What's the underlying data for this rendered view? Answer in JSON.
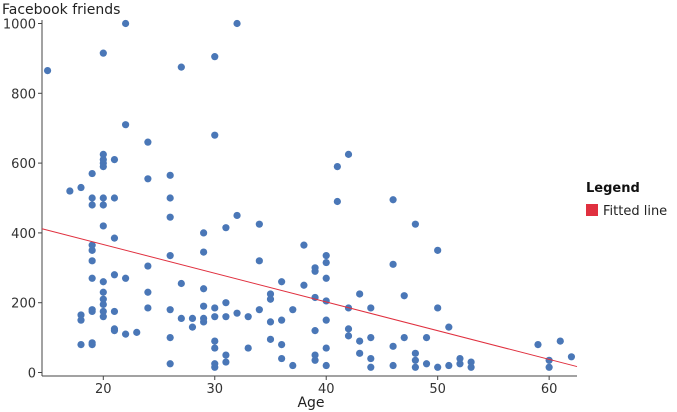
{
  "chart_data": {
    "type": "scatter",
    "title": "",
    "xlabel": "Age",
    "ylabel": "Facebook friends",
    "xlim": [
      14.5,
      62.5
    ],
    "ylim": [
      -10,
      1010
    ],
    "x_ticks": [
      20,
      30,
      40,
      50,
      60
    ],
    "y_ticks": [
      0,
      200,
      400,
      600,
      800,
      1000
    ],
    "grid": false,
    "legend": {
      "title": "Legend",
      "position": "right",
      "entries": [
        {
          "label": "Fitted line",
          "color": "#e0303f",
          "kind": "line"
        }
      ]
    },
    "point_color": "#4a77b7",
    "line_color": "#e0303f",
    "fitted_line": {
      "x": [
        14.5,
        62.5
      ],
      "y": [
        412,
        17
      ]
    },
    "points": {
      "x": [
        15,
        17,
        18,
        18,
        18,
        18,
        19,
        19,
        19,
        19,
        19,
        19,
        19,
        19,
        19,
        19,
        19,
        20,
        20,
        20,
        20,
        20,
        20,
        20,
        20,
        20,
        20,
        20,
        20,
        20,
        20,
        21,
        21,
        21,
        21,
        21,
        21,
        21,
        22,
        22,
        22,
        22,
        23,
        24,
        24,
        24,
        24,
        24,
        26,
        26,
        26,
        26,
        26,
        26,
        26,
        27,
        27,
        27,
        28,
        28,
        29,
        29,
        29,
        29,
        29,
        29,
        30,
        30,
        30,
        30,
        30,
        30,
        30,
        30,
        31,
        31,
        31,
        31,
        31,
        32,
        32,
        32,
        33,
        33,
        34,
        34,
        34,
        35,
        35,
        35,
        35,
        36,
        36,
        36,
        36,
        37,
        37,
        38,
        38,
        39,
        39,
        39,
        39,
        39,
        39,
        40,
        40,
        40,
        40,
        40,
        40,
        40,
        41,
        41,
        42,
        42,
        42,
        42,
        43,
        43,
        43,
        44,
        44,
        44,
        44,
        46,
        46,
        46,
        46,
        47,
        47,
        48,
        48,
        48,
        48,
        49,
        49,
        50,
        50,
        50,
        51,
        51,
        52,
        52,
        53,
        53,
        59,
        60,
        60,
        61,
        62
      ],
      "y": [
        865,
        520,
        530,
        165,
        150,
        80,
        570,
        500,
        480,
        365,
        350,
        320,
        270,
        180,
        175,
        85,
        80,
        915,
        625,
        610,
        600,
        590,
        500,
        480,
        420,
        260,
        230,
        210,
        195,
        175,
        160,
        610,
        500,
        385,
        280,
        175,
        125,
        120,
        1000,
        710,
        270,
        110,
        115,
        660,
        555,
        305,
        230,
        185,
        565,
        500,
        445,
        335,
        180,
        100,
        25,
        875,
        255,
        155,
        155,
        130,
        400,
        345,
        240,
        190,
        155,
        145,
        905,
        680,
        185,
        160,
        90,
        70,
        25,
        15,
        415,
        200,
        160,
        50,
        30,
        1000,
        450,
        170,
        160,
        70,
        425,
        320,
        180,
        225,
        210,
        145,
        95,
        260,
        150,
        80,
        40,
        180,
        20,
        365,
        250,
        300,
        290,
        215,
        120,
        50,
        35,
        335,
        315,
        270,
        205,
        150,
        70,
        20,
        590,
        490,
        625,
        185,
        125,
        105,
        225,
        90,
        55,
        185,
        100,
        40,
        15,
        495,
        310,
        75,
        20,
        220,
        100,
        425,
        55,
        35,
        15,
        100,
        25,
        350,
        185,
        15,
        130,
        20,
        40,
        25,
        30,
        15,
        80,
        35,
        15,
        90,
        45
      ]
    }
  }
}
